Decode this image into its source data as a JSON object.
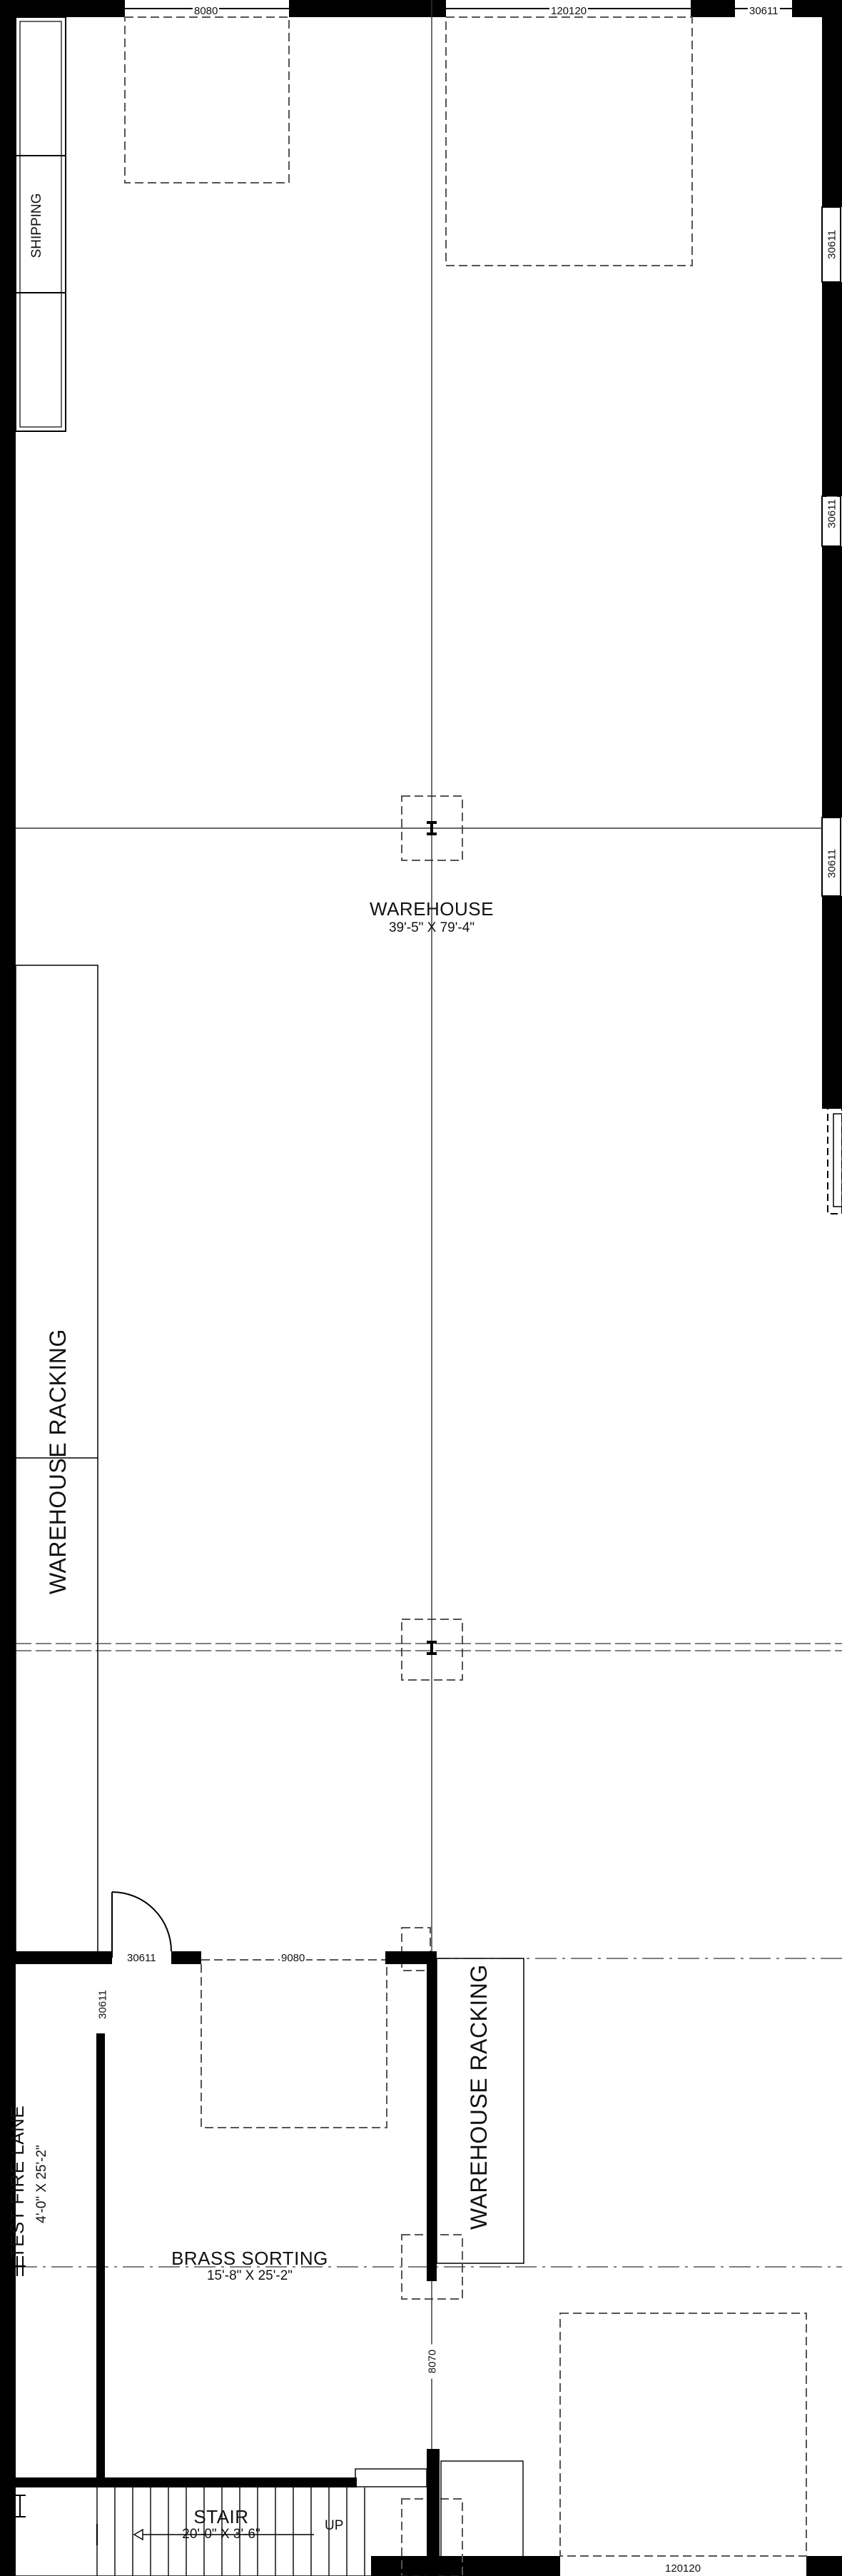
{
  "rooms": {
    "warehouse": {
      "name": "WAREHOUSE",
      "dims": "39'-5\" X 79'-4\""
    },
    "brass_sorting": {
      "name": "BRASS SORTING",
      "dims": "15'-8\" X 25'-2\""
    },
    "test_fire_lane": {
      "name": "TEST FIRE LANE",
      "dims": "4'-0\" X 25'-2\""
    },
    "stair": {
      "name": "STAIR",
      "dims": "20'-0\" X 3'-6\"",
      "up_label": "UP"
    }
  },
  "areas": {
    "shipping": "SHIPPING",
    "racking_left": "WAREHOUSE RACKING",
    "racking_right": "WAREHOUSE RACKING"
  },
  "door_tags": {
    "top_left": "8080",
    "top_center": "120120",
    "top_right": "30611",
    "right_1": "30611",
    "right_2": "30611",
    "right_3": "30611",
    "interior_left": "30611",
    "interior_center": "9080",
    "interior_vertical": "30611",
    "lower_center": "8070",
    "bottom_right": "120120"
  }
}
